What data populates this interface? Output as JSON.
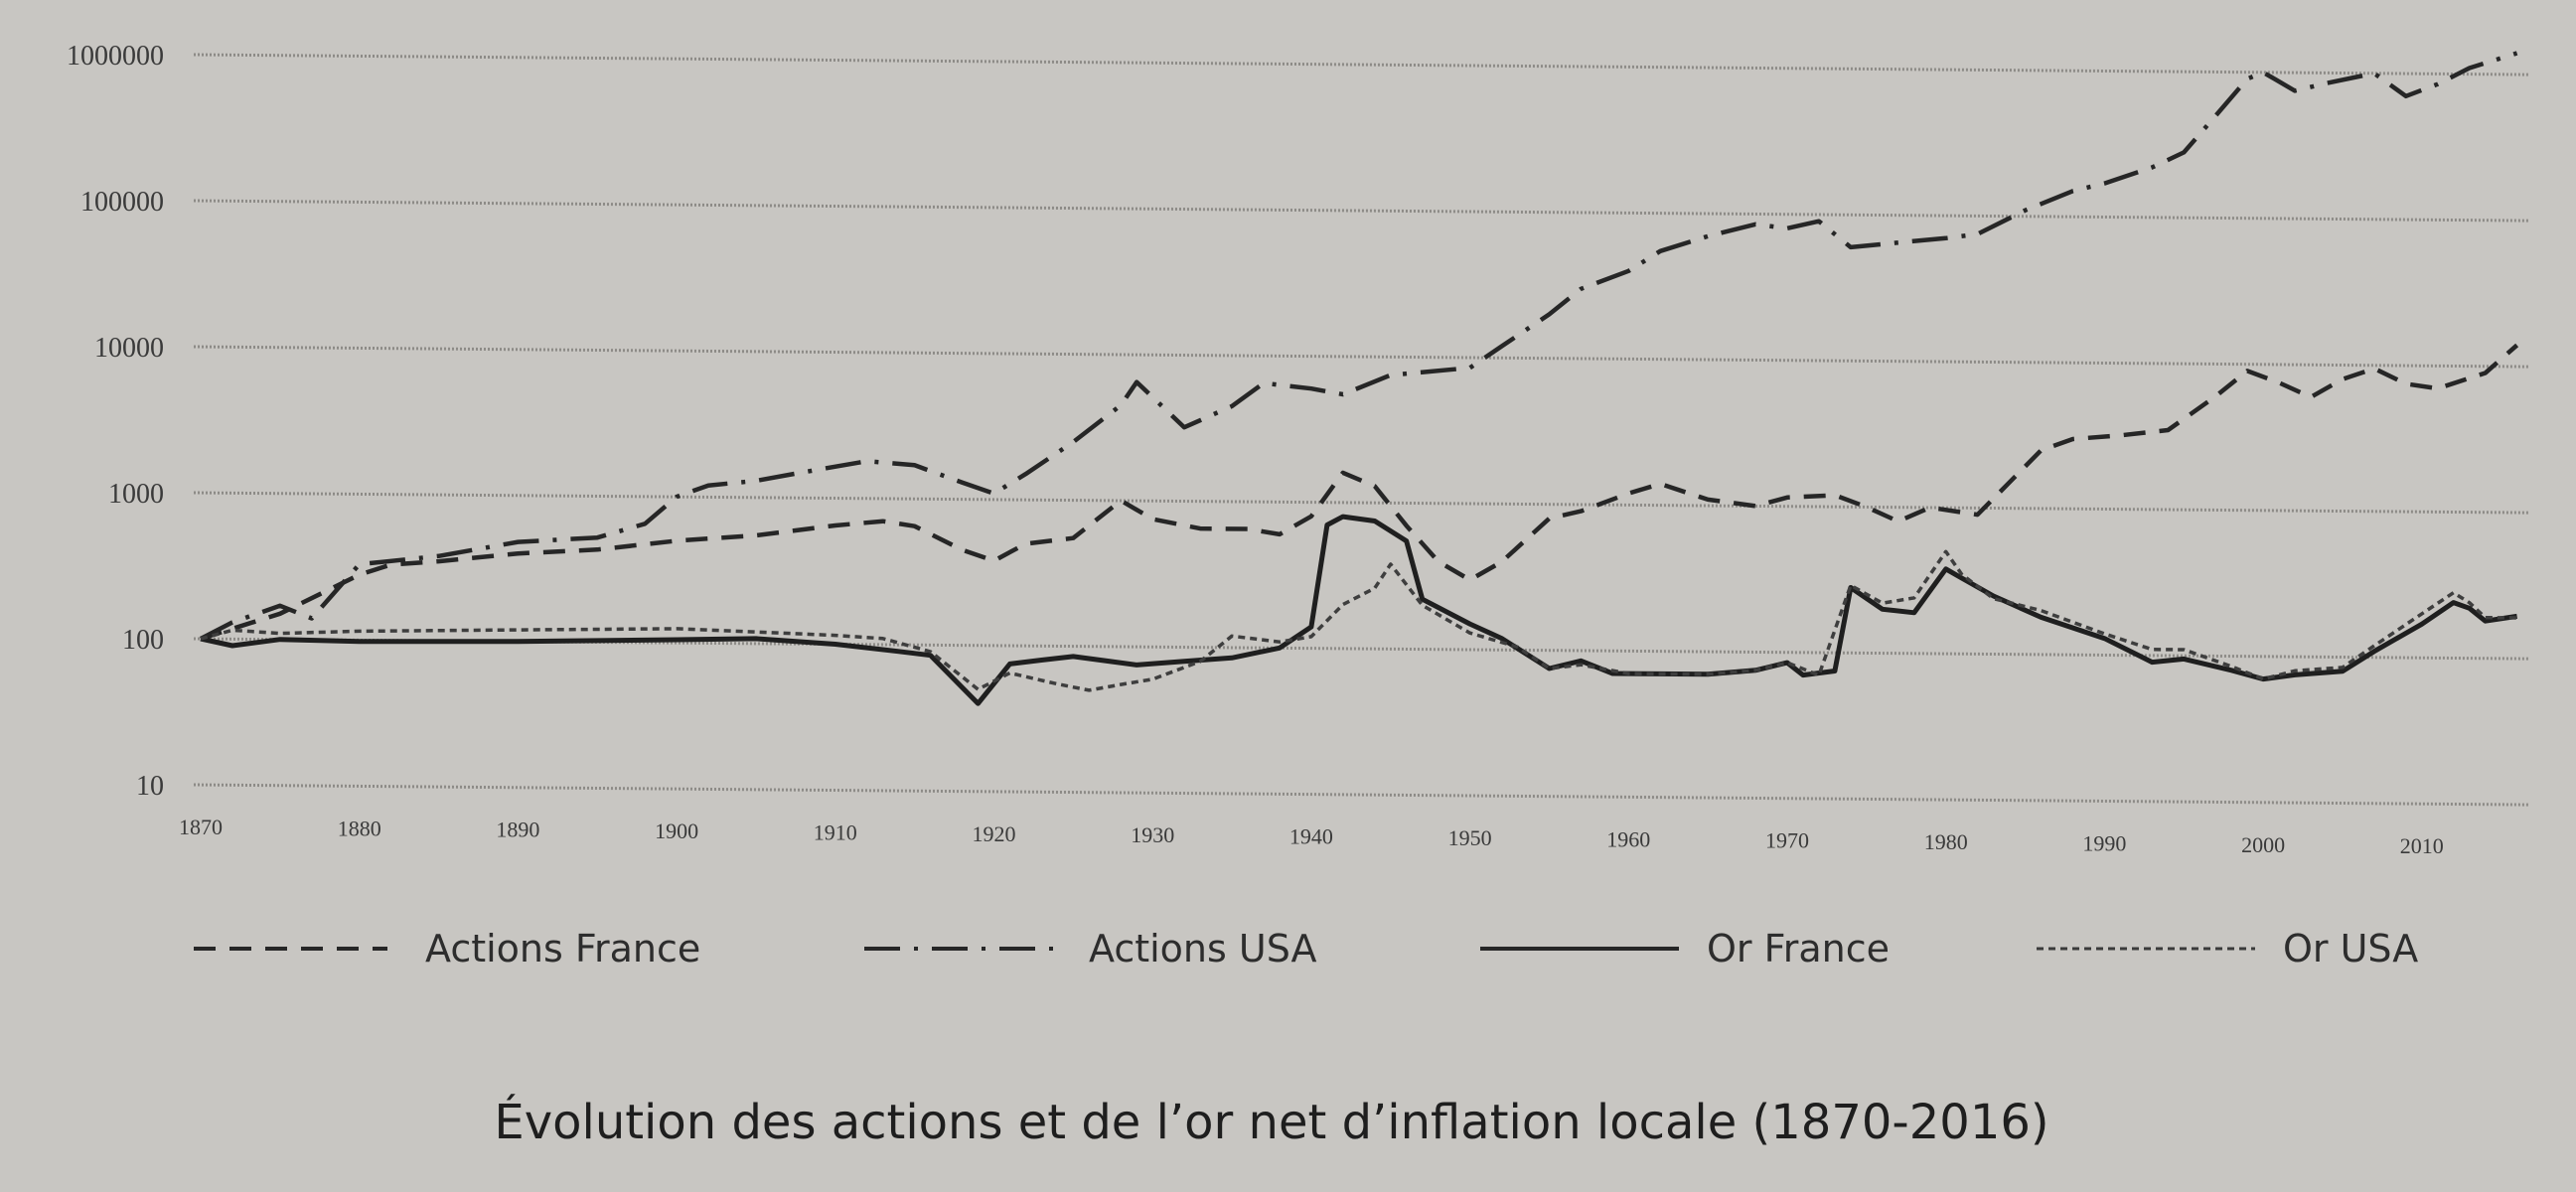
{
  "chart_data": {
    "type": "line",
    "title": "Évolution des actions et de l’or net d’inflation locale (1870-2016)",
    "xlabel": "",
    "ylabel": "",
    "yscale": "log",
    "ylim": [
      10,
      1000000
    ],
    "xlim": [
      1870,
      2016
    ],
    "grid": true,
    "legend_position": "bottom",
    "y_ticks": [
      "1000000",
      "100000",
      "10000",
      "1000",
      "100",
      "10"
    ],
    "y_tick_values": [
      1000000,
      100000,
      10000,
      1000,
      100,
      10
    ],
    "x_ticks": [
      "1870",
      "1880",
      "1890",
      "1900",
      "1910",
      "1920",
      "1930",
      "1940",
      "1950",
      "1960",
      "1970",
      "1980",
      "1990",
      "2000",
      "2010"
    ],
    "series": [
      {
        "name": "Actions France",
        "style": "dashed",
        "x": [
          1870,
          1875,
          1880,
          1882,
          1885,
          1890,
          1895,
          1900,
          1905,
          1910,
          1913,
          1915,
          1918,
          1920,
          1922,
          1925,
          1928,
          1930,
          1933,
          1936,
          1938,
          1940,
          1942,
          1944,
          1946,
          1948,
          1950,
          1952,
          1955,
          1957,
          1960,
          1962,
          1965,
          1968,
          1970,
          1973,
          1975,
          1977,
          1979,
          1982,
          1984,
          1986,
          1988,
          1991,
          1994,
          1997,
          1999,
          2001,
          2003,
          2005,
          2007,
          2009,
          2011,
          2014,
          2016
        ],
        "y": [
          100,
          150,
          280,
          330,
          350,
          400,
          430,
          500,
          550,
          650,
          700,
          650,
          450,
          380,
          500,
          550,
          1000,
          750,
          650,
          650,
          600,
          800,
          1600,
          1300,
          700,
          400,
          300,
          400,
          800,
          900,
          1200,
          1400,
          1100,
          1000,
          1150,
          1200,
          1000,
          800,
          1000,
          900,
          1500,
          2500,
          3000,
          3200,
          3500,
          6000,
          9000,
          7500,
          6000,
          8000,
          9500,
          7500,
          7000,
          9000,
          14000
        ]
      },
      {
        "name": "Actions USA",
        "style": "dash-dot",
        "x": [
          1870,
          1872,
          1875,
          1877,
          1880,
          1885,
          1890,
          1895,
          1898,
          1900,
          1902,
          1905,
          1908,
          1912,
          1915,
          1918,
          1920,
          1922,
          1925,
          1928,
          1929,
          1932,
          1935,
          1937,
          1940,
          1942,
          1945,
          1950,
          1952,
          1955,
          1957,
          1960,
          1962,
          1965,
          1968,
          1970,
          1972,
          1974,
          1977,
          1980,
          1982,
          1985,
          1988,
          1990,
          1993,
          1995,
          1997,
          1999,
          2000,
          2002,
          2004,
          2007,
          2009,
          2011,
          2013,
          2016
        ],
        "y": [
          100,
          130,
          170,
          140,
          330,
          380,
          480,
          520,
          650,
          1000,
          1200,
          1300,
          1500,
          1800,
          1700,
          1300,
          1100,
          1500,
          2500,
          4500,
          6500,
          3200,
          4500,
          6500,
          6000,
          5500,
          7500,
          8500,
          12000,
          20000,
          30000,
          40000,
          55000,
          70000,
          85000,
          80000,
          90000,
          60000,
          65000,
          70000,
          75000,
          110000,
          150000,
          170000,
          220000,
          280000,
          500000,
          900000,
          1000000,
          750000,
          850000,
          1000000,
          700000,
          850000,
          1100000,
          1400000
        ]
      },
      {
        "name": "Or France",
        "style": "solid",
        "x": [
          1870,
          1872,
          1875,
          1880,
          1890,
          1900,
          1905,
          1910,
          1914,
          1916,
          1919,
          1921,
          1923,
          1925,
          1927,
          1929,
          1932,
          1935,
          1938,
          1940,
          1941,
          1942,
          1944,
          1946,
          1947,
          1950,
          1952,
          1955,
          1957,
          1959,
          1962,
          1965,
          1968,
          1970,
          1971,
          1973,
          1974,
          1976,
          1978,
          1980,
          1981,
          1983,
          1986,
          1990,
          1993,
          1995,
          1998,
          2000,
          2002,
          2005,
          2007,
          2010,
          2012,
          2013,
          2014,
          2016
        ],
        "y": [
          100,
          90,
          100,
          98,
          100,
          105,
          108,
          100,
          90,
          85,
          40,
          75,
          80,
          85,
          80,
          75,
          80,
          85,
          100,
          140,
          700,
          800,
          750,
          550,
          220,
          150,
          120,
          75,
          85,
          70,
          70,
          70,
          75,
          85,
          70,
          75,
          280,
          200,
          190,
          380,
          330,
          250,
          180,
          130,
          90,
          95,
          80,
          70,
          75,
          80,
          110,
          170,
          240,
          220,
          180,
          195
        ]
      },
      {
        "name": "Or USA",
        "style": "dotted",
        "x": [
          1870,
          1872,
          1875,
          1880,
          1890,
          1900,
          1905,
          1910,
          1913,
          1916,
          1919,
          1921,
          1924,
          1926,
          1928,
          1930,
          1933,
          1935,
          1938,
          1940,
          1942,
          1944,
          1945,
          1947,
          1950,
          1953,
          1955,
          1957,
          1960,
          1965,
          1968,
          1970,
          1972,
          1974,
          1976,
          1978,
          1980,
          1981,
          1983,
          1986,
          1990,
          1993,
          1995,
          1998,
          2000,
          2002,
          2005,
          2007,
          2010,
          2012,
          2013,
          2014,
          2016
        ],
        "y": [
          100,
          115,
          110,
          115,
          120,
          125,
          120,
          115,
          110,
          90,
          50,
          65,
          55,
          50,
          55,
          60,
          80,
          120,
          110,
          120,
          200,
          260,
          380,
          200,
          130,
          105,
          75,
          80,
          70,
          70,
          75,
          85,
          70,
          290,
          220,
          240,
          500,
          350,
          240,
          200,
          140,
          110,
          110,
          85,
          70,
          80,
          85,
          120,
          200,
          280,
          240,
          190,
          190
        ]
      }
    ]
  },
  "legend": {
    "actions_france": "Actions France",
    "actions_usa": "Actions USA",
    "or_france": "Or France",
    "or_usa": "Or USA"
  },
  "caption": "Évolution des actions et de l’or net d’inflation locale (1870-2016)",
  "colors": {
    "background": "#c8c6c2",
    "line": "#262626",
    "grid": "#8d8b87"
  }
}
